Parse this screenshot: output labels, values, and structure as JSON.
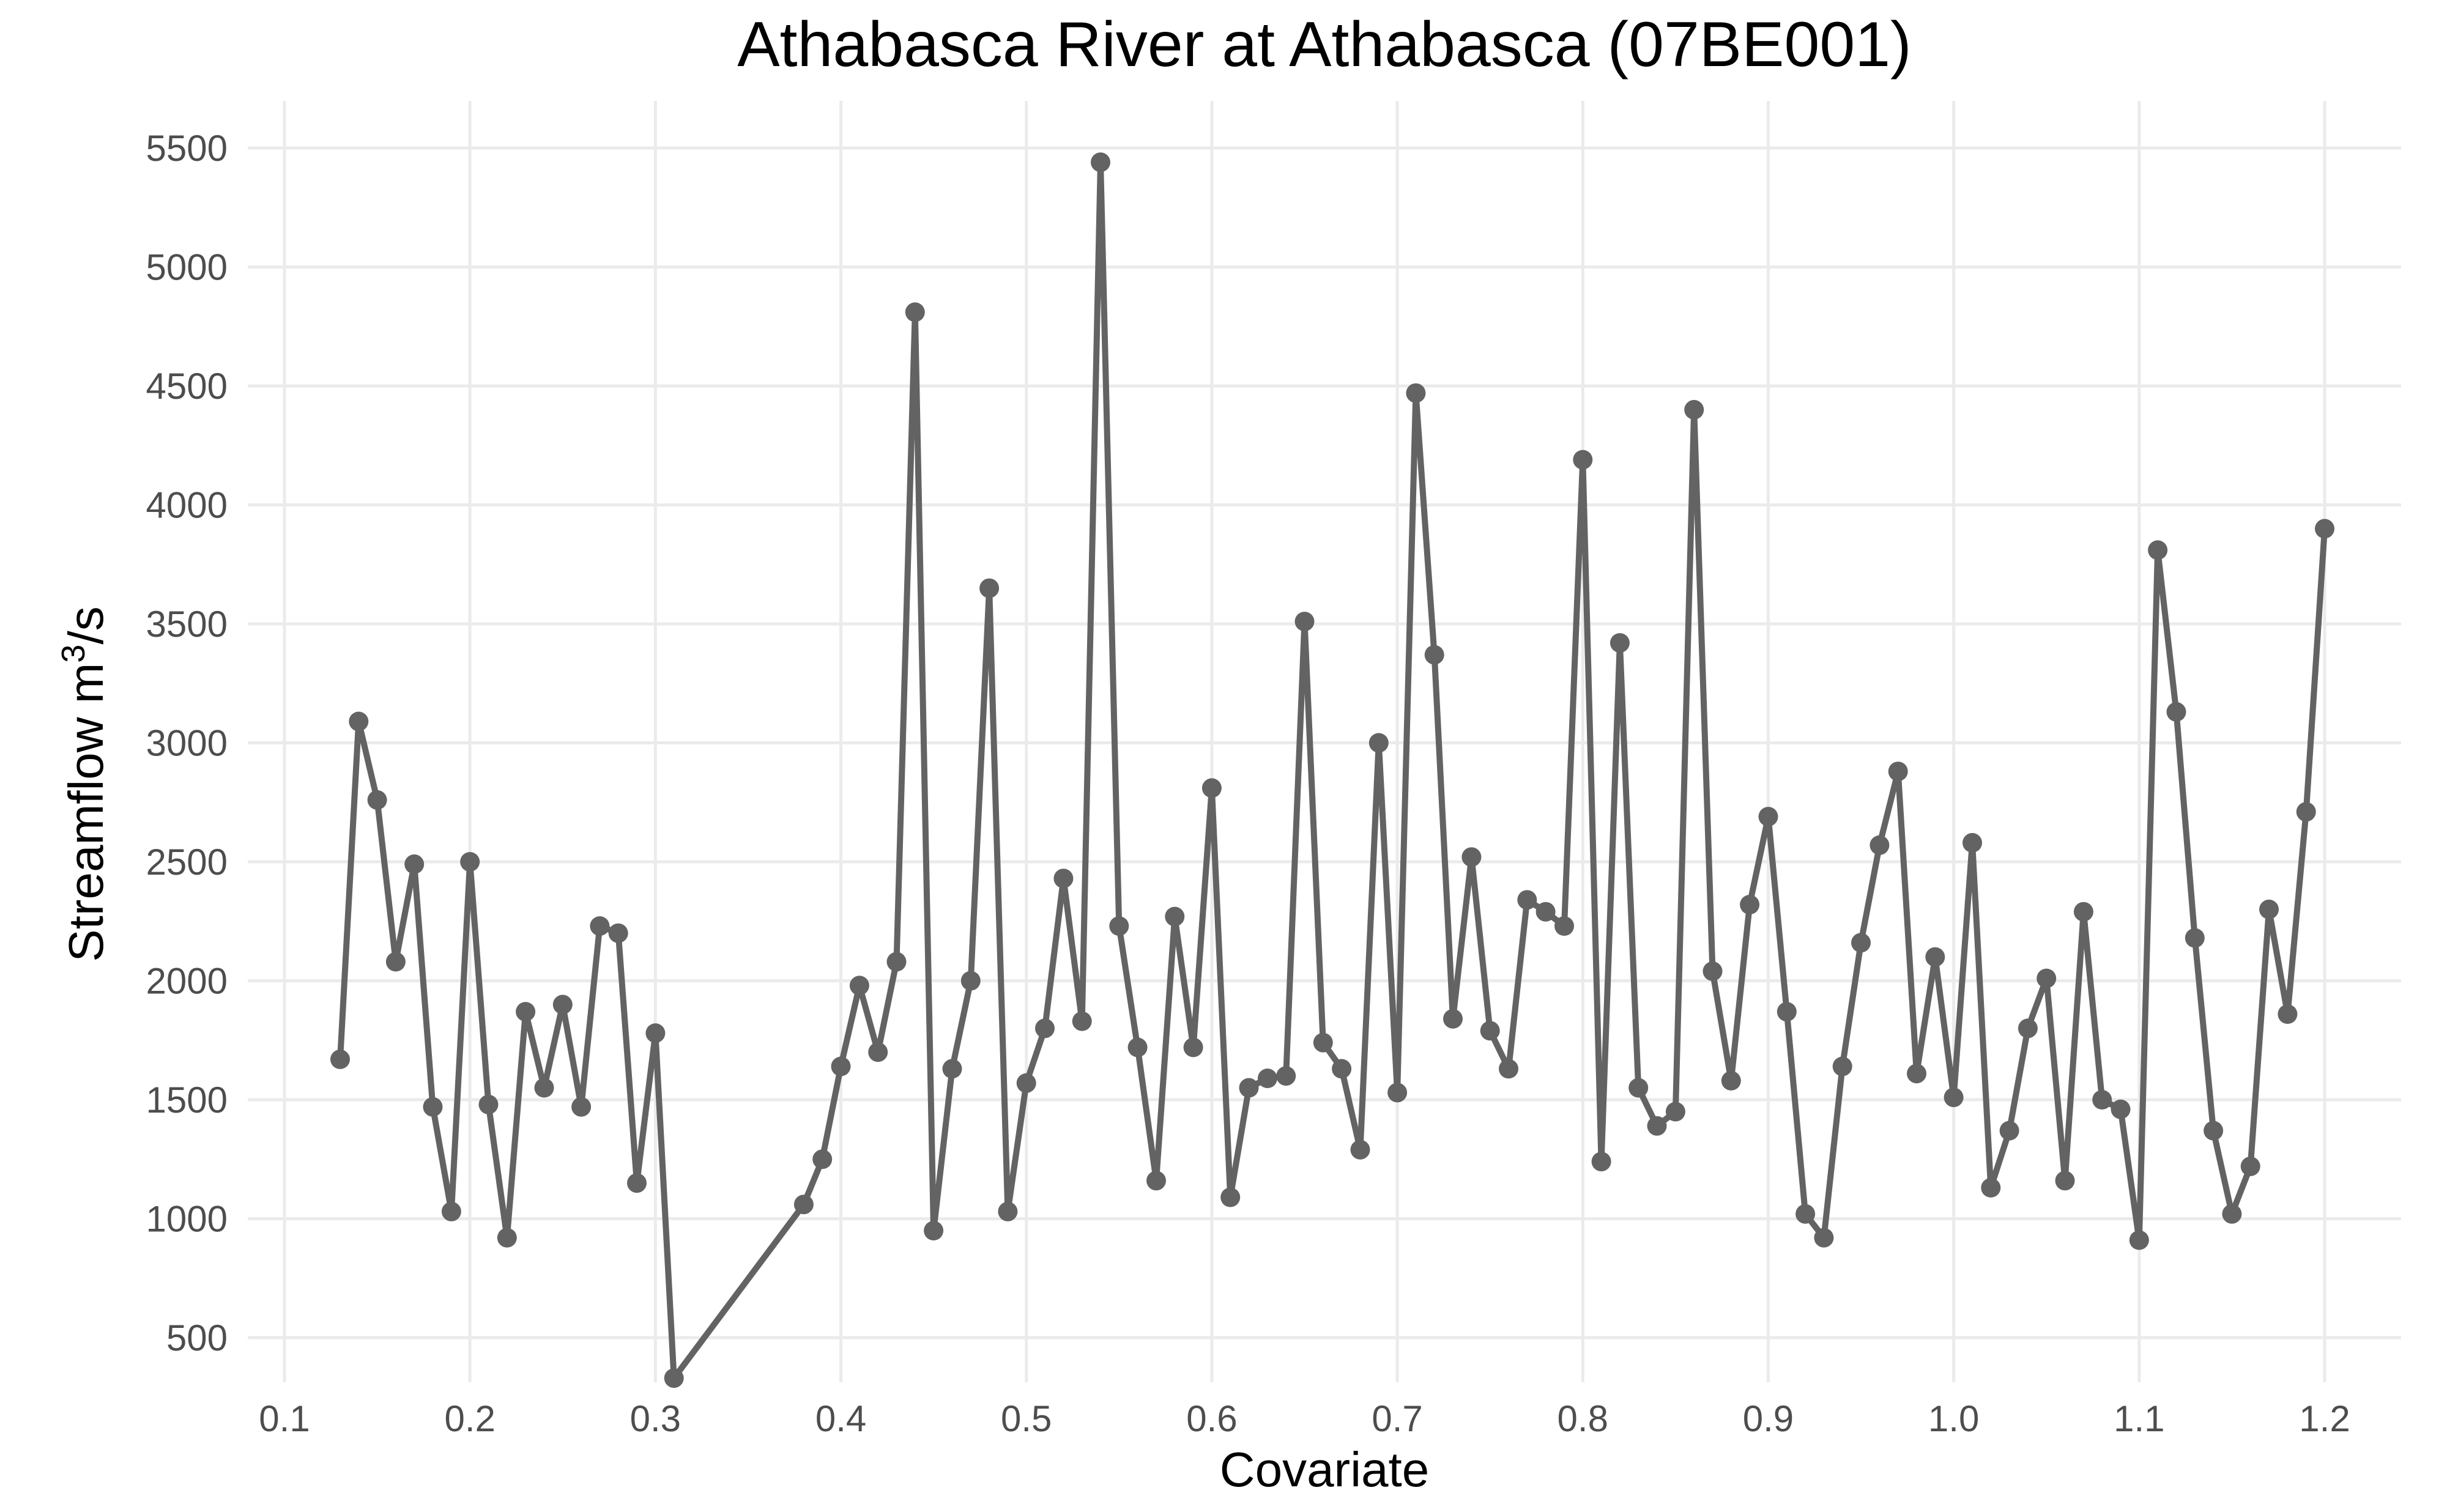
{
  "chart_data": {
    "type": "line",
    "title": "Athabasca River at Athabasca (07BE001)",
    "xlabel": "Covariate",
    "ylabel": "Streamflow m",
    "ylabel_sup": "3",
    "ylabel_suffix": "/s",
    "xlim": [
      0.1,
      1.2
    ],
    "ylim": [
      300,
      5500
    ],
    "x_ticks": [
      "0.1",
      "0.2",
      "0.3",
      "0.4",
      "0.5",
      "0.6",
      "0.7",
      "0.8",
      "0.9",
      "1.0",
      "1.1",
      "1.2"
    ],
    "y_ticks": [
      "500",
      "1000",
      "1500",
      "2000",
      "2500",
      "3000",
      "3500",
      "4000",
      "4500",
      "5000",
      "5500"
    ],
    "grid": true,
    "series_color": "#636363",
    "grid_color": "#ebebeb",
    "x": [
      0.13,
      0.14,
      0.15,
      0.16,
      0.17,
      0.18,
      0.19,
      0.2,
      0.21,
      0.22,
      0.23,
      0.24,
      0.25,
      0.26,
      0.27,
      0.28,
      0.29,
      0.3,
      0.31,
      0.38,
      0.39,
      0.4,
      0.41,
      0.42,
      0.43,
      0.44,
      0.45,
      0.46,
      0.47,
      0.48,
      0.49,
      0.5,
      0.51,
      0.52,
      0.53,
      0.54,
      0.55,
      0.56,
      0.57,
      0.58,
      0.59,
      0.6,
      0.61,
      0.62,
      0.63,
      0.64,
      0.65,
      0.66,
      0.67,
      0.68,
      0.69,
      0.7,
      0.71,
      0.72,
      0.73,
      0.74,
      0.75,
      0.76,
      0.77,
      0.78,
      0.79,
      0.8,
      0.81,
      0.82,
      0.83,
      0.84,
      0.85,
      0.86,
      0.87,
      0.88,
      0.89,
      0.9,
      0.91,
      0.92,
      0.93,
      0.94,
      0.95,
      0.96,
      0.97,
      0.98,
      0.99,
      1.0,
      1.01,
      1.02,
      1.03,
      1.04,
      1.05,
      1.06,
      1.07,
      1.08,
      1.09,
      1.1,
      1.11,
      1.12,
      1.13,
      1.14,
      1.15,
      1.16,
      1.17,
      1.18,
      1.19,
      1.2
    ],
    "y": [
      1670,
      3090,
      2760,
      2080,
      2490,
      1470,
      1030,
      2500,
      1480,
      920,
      1870,
      1550,
      1900,
      1470,
      2230,
      2200,
      1150,
      1780,
      330,
      1060,
      1250,
      1640,
      1980,
      1700,
      2080,
      4810,
      950,
      1630,
      2000,
      3650,
      1030,
      1570,
      1800,
      2430,
      1830,
      5440,
      2230,
      1720,
      1160,
      2270,
      1720,
      2810,
      1090,
      1550,
      1590,
      1600,
      3510,
      1740,
      1630,
      1290,
      3000,
      1530,
      4470,
      3370,
      1840,
      2520,
      1790,
      1630,
      2340,
      2290,
      2230,
      4190,
      1240,
      3420,
      1550,
      1390,
      1450,
      4400,
      2040,
      1580,
      2320,
      2690,
      1870,
      1020,
      920,
      1640,
      2160,
      2570,
      2880,
      1610,
      2100,
      1510,
      2580,
      1130,
      1370,
      1800,
      2010,
      1160,
      2290,
      1500,
      1460,
      910,
      3810,
      3130,
      2180,
      1370,
      1020,
      1220,
      2300,
      1860,
      2710,
      3900
    ]
  }
}
